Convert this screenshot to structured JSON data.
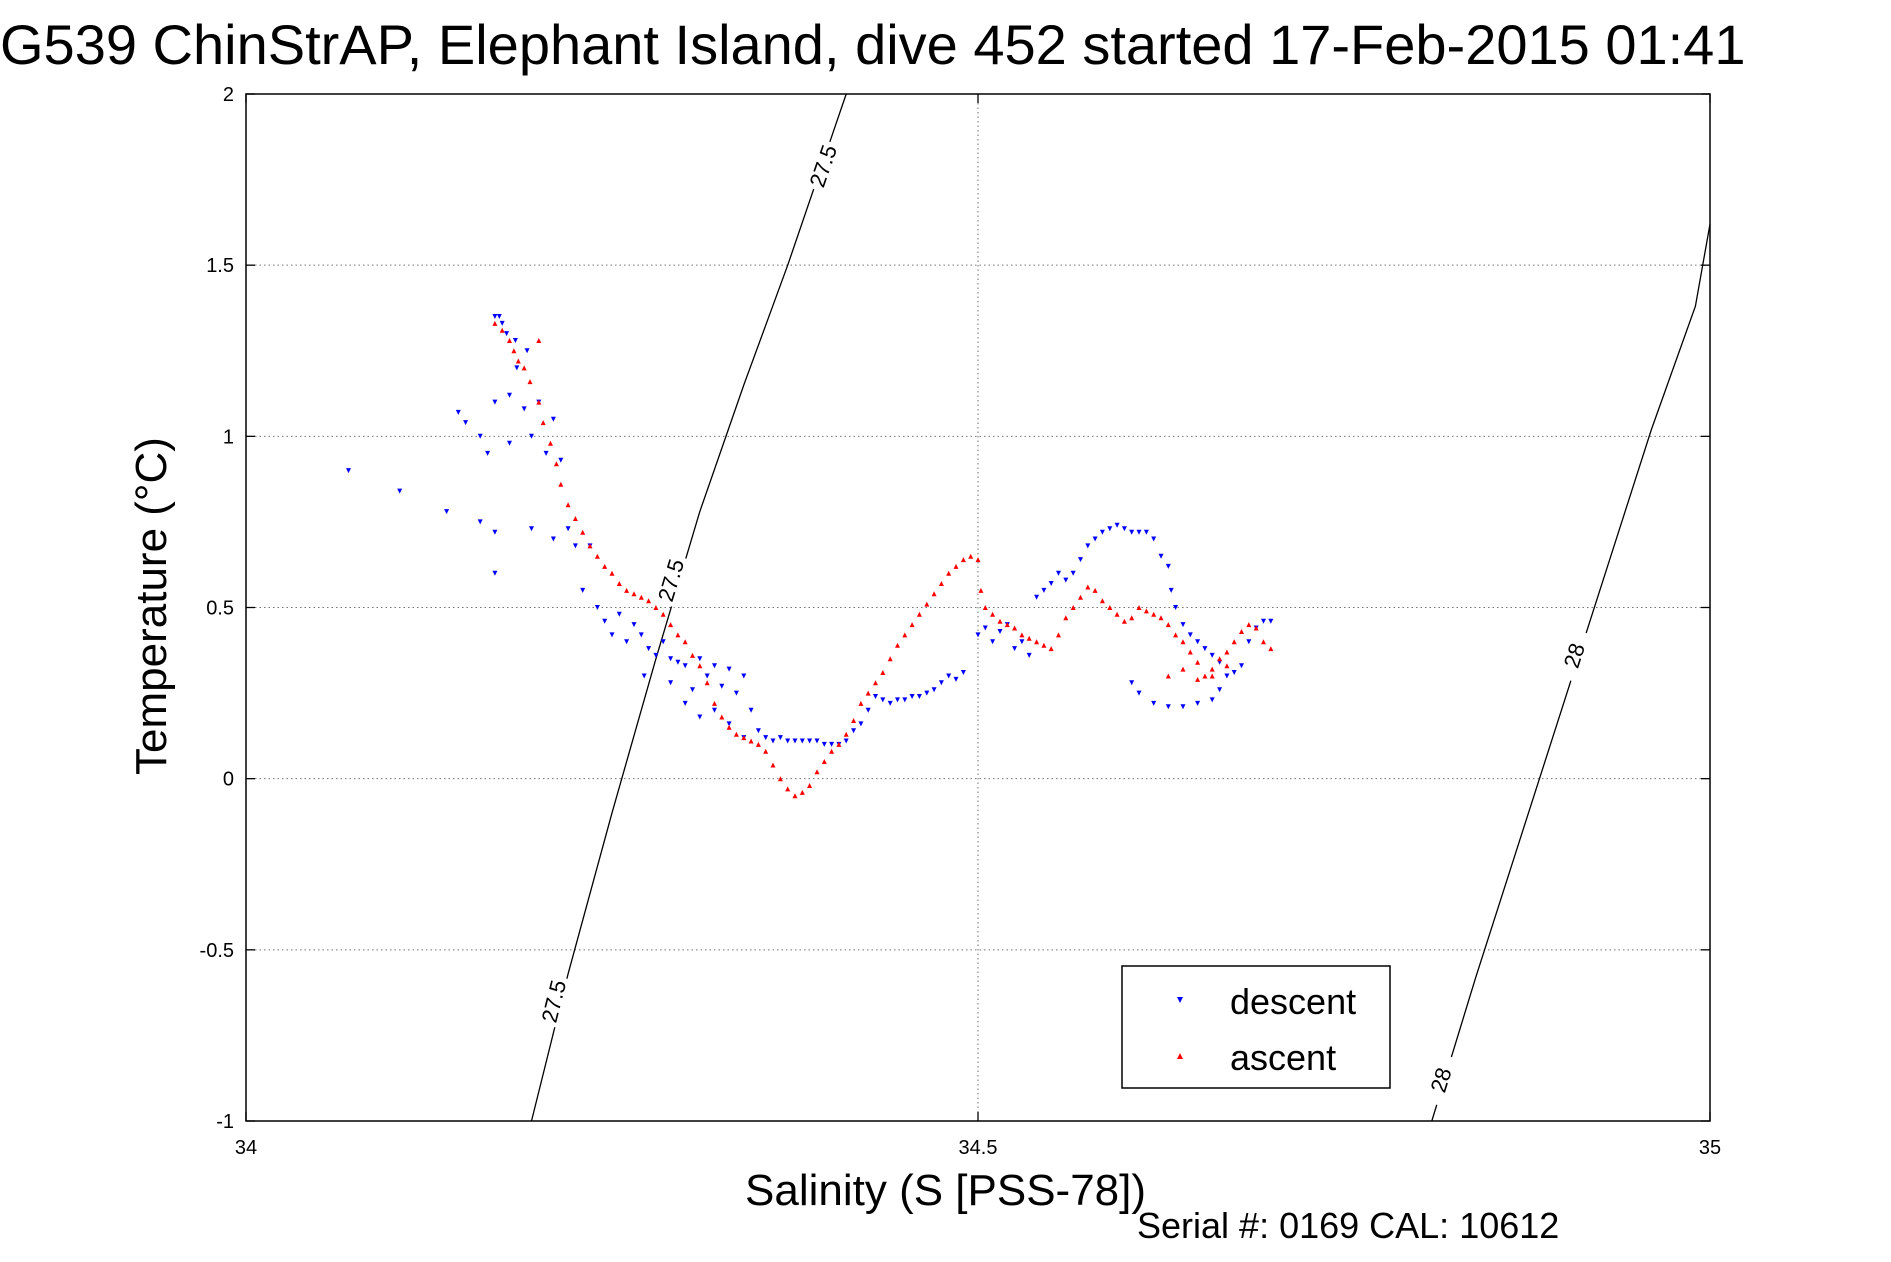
{
  "chart_data": {
    "type": "scatter",
    "title": "G539 ChinStrAP, Elephant Island, dive 452 started 17-Feb-2015 01:41",
    "xlabel": "Salinity (S [PSS-78])",
    "ylabel": "Temperature (°C)",
    "xlim": [
      34,
      35
    ],
    "ylim": [
      -1,
      2
    ],
    "xticks": [
      34,
      34.5,
      35
    ],
    "xtick_labels": [
      "34",
      "34.5",
      "35"
    ],
    "yticks": [
      -1,
      -0.5,
      0,
      0.5,
      1,
      1.5,
      2
    ],
    "ytick_labels": [
      "-1",
      "-0.5",
      "0",
      "0.5",
      "1",
      "1.5",
      "2"
    ],
    "grid": true,
    "legend_position": "bottom-right",
    "footer": "Serial #: 0169 CAL: 10612",
    "colors": {
      "descent": "#0000ff",
      "ascent": "#ff0000",
      "axes": "#000000",
      "grid": "#000000",
      "background": "#ffffff"
    },
    "series": [
      {
        "name": "descent",
        "marker": "triangle-down",
        "color": "#0000ff",
        "points": [
          [
            34.07,
            0.9
          ],
          [
            34.105,
            0.84
          ],
          [
            34.137,
            0.78
          ],
          [
            34.145,
            1.07
          ],
          [
            34.15,
            1.04
          ],
          [
            34.16,
            1.0
          ],
          [
            34.165,
            0.95
          ],
          [
            34.16,
            0.75
          ],
          [
            34.17,
            1.35
          ],
          [
            34.17,
            1.1
          ],
          [
            34.17,
            0.72
          ],
          [
            34.17,
            0.6
          ],
          [
            34.173,
            1.35
          ],
          [
            34.175,
            1.33
          ],
          [
            34.178,
            1.3
          ],
          [
            34.18,
            1.12
          ],
          [
            34.18,
            0.98
          ],
          [
            34.184,
            1.28
          ],
          [
            34.185,
            1.2
          ],
          [
            34.19,
            1.08
          ],
          [
            34.192,
            1.25
          ],
          [
            34.195,
            1.0
          ],
          [
            34.195,
            0.73
          ],
          [
            34.2,
            1.1
          ],
          [
            34.205,
            0.95
          ],
          [
            34.21,
            1.05
          ],
          [
            34.21,
            0.7
          ],
          [
            34.215,
            0.93
          ],
          [
            34.22,
            0.73
          ],
          [
            34.225,
            0.68
          ],
          [
            34.23,
            0.55
          ],
          [
            34.235,
            0.68
          ],
          [
            34.24,
            0.5
          ],
          [
            34.245,
            0.46
          ],
          [
            34.25,
            0.42
          ],
          [
            34.255,
            0.48
          ],
          [
            34.26,
            0.4
          ],
          [
            34.265,
            0.45
          ],
          [
            34.27,
            0.42
          ],
          [
            34.272,
            0.3
          ],
          [
            34.275,
            0.38
          ],
          [
            34.28,
            0.36
          ],
          [
            34.285,
            0.4
          ],
          [
            34.29,
            0.35
          ],
          [
            34.29,
            0.28
          ],
          [
            34.295,
            0.34
          ],
          [
            34.3,
            0.33
          ],
          [
            34.3,
            0.22
          ],
          [
            34.305,
            0.26
          ],
          [
            34.31,
            0.35
          ],
          [
            34.31,
            0.18
          ],
          [
            34.315,
            0.3
          ],
          [
            34.32,
            0.33
          ],
          [
            34.32,
            0.2
          ],
          [
            34.325,
            0.27
          ],
          [
            34.33,
            0.32
          ],
          [
            34.33,
            0.16
          ],
          [
            34.335,
            0.25
          ],
          [
            34.34,
            0.3
          ],
          [
            34.34,
            0.12
          ],
          [
            34.345,
            0.2
          ],
          [
            34.35,
            0.14
          ],
          [
            34.355,
            0.12
          ],
          [
            34.36,
            0.11
          ],
          [
            34.365,
            0.12
          ],
          [
            34.37,
            0.11
          ],
          [
            34.375,
            0.11
          ],
          [
            34.38,
            0.11
          ],
          [
            34.385,
            0.11
          ],
          [
            34.39,
            0.11
          ],
          [
            34.395,
            0.1
          ],
          [
            34.4,
            0.1
          ],
          [
            34.405,
            0.1
          ],
          [
            34.41,
            0.11
          ],
          [
            34.415,
            0.14
          ],
          [
            34.42,
            0.16
          ],
          [
            34.425,
            0.2
          ],
          [
            34.43,
            0.24
          ],
          [
            34.435,
            0.23
          ],
          [
            34.44,
            0.22
          ],
          [
            34.445,
            0.23
          ],
          [
            34.45,
            0.23
          ],
          [
            34.455,
            0.24
          ],
          [
            34.46,
            0.24
          ],
          [
            34.465,
            0.25
          ],
          [
            34.47,
            0.26
          ],
          [
            34.475,
            0.28
          ],
          [
            34.48,
            0.3
          ],
          [
            34.485,
            0.29
          ],
          [
            34.49,
            0.31
          ],
          [
            34.5,
            0.42
          ],
          [
            34.505,
            0.44
          ],
          [
            34.51,
            0.4
          ],
          [
            34.515,
            0.43
          ],
          [
            34.52,
            0.45
          ],
          [
            34.525,
            0.38
          ],
          [
            34.53,
            0.4
          ],
          [
            34.535,
            0.36
          ],
          [
            34.54,
            0.53
          ],
          [
            34.545,
            0.55
          ],
          [
            34.55,
            0.57
          ],
          [
            34.555,
            0.6
          ],
          [
            34.56,
            0.58
          ],
          [
            34.565,
            0.6
          ],
          [
            34.57,
            0.64
          ],
          [
            34.575,
            0.68
          ],
          [
            34.58,
            0.7
          ],
          [
            34.585,
            0.72
          ],
          [
            34.59,
            0.73
          ],
          [
            34.595,
            0.74
          ],
          [
            34.6,
            0.73
          ],
          [
            34.605,
            0.72
          ],
          [
            34.61,
            0.72
          ],
          [
            34.615,
            0.72
          ],
          [
            34.62,
            0.7
          ],
          [
            34.625,
            0.65
          ],
          [
            34.63,
            0.62
          ],
          [
            34.632,
            0.55
          ],
          [
            34.635,
            0.5
          ],
          [
            34.64,
            0.45
          ],
          [
            34.645,
            0.42
          ],
          [
            34.65,
            0.4
          ],
          [
            34.655,
            0.38
          ],
          [
            34.66,
            0.36
          ],
          [
            34.665,
            0.34
          ],
          [
            34.67,
            0.3
          ],
          [
            34.675,
            0.31
          ],
          [
            34.68,
            0.33
          ],
          [
            34.685,
            0.4
          ],
          [
            34.69,
            0.44
          ],
          [
            34.695,
            0.46
          ],
          [
            34.7,
            0.46
          ],
          [
            34.605,
            0.28
          ],
          [
            34.61,
            0.25
          ],
          [
            34.62,
            0.22
          ],
          [
            34.63,
            0.21
          ],
          [
            34.64,
            0.21
          ],
          [
            34.65,
            0.22
          ],
          [
            34.66,
            0.23
          ],
          [
            34.665,
            0.26
          ]
        ]
      },
      {
        "name": "ascent",
        "marker": "triangle-up",
        "color": "#ff0000",
        "points": [
          [
            34.17,
            1.33
          ],
          [
            34.175,
            1.31
          ],
          [
            34.18,
            1.28
          ],
          [
            34.183,
            1.25
          ],
          [
            34.186,
            1.22
          ],
          [
            34.19,
            1.2
          ],
          [
            34.194,
            1.16
          ],
          [
            34.2,
            1.1
          ],
          [
            34.203,
            1.04
          ],
          [
            34.208,
            0.98
          ],
          [
            34.212,
            0.92
          ],
          [
            34.215,
            0.86
          ],
          [
            34.22,
            0.8
          ],
          [
            34.225,
            0.76
          ],
          [
            34.23,
            0.72
          ],
          [
            34.235,
            0.68
          ],
          [
            34.24,
            0.65
          ],
          [
            34.245,
            0.62
          ],
          [
            34.25,
            0.6
          ],
          [
            34.255,
            0.57
          ],
          [
            34.26,
            0.55
          ],
          [
            34.265,
            0.54
          ],
          [
            34.27,
            0.53
          ],
          [
            34.275,
            0.52
          ],
          [
            34.28,
            0.5
          ],
          [
            34.285,
            0.48
          ],
          [
            34.29,
            0.45
          ],
          [
            34.295,
            0.42
          ],
          [
            34.3,
            0.4
          ],
          [
            34.305,
            0.36
          ],
          [
            34.31,
            0.33
          ],
          [
            34.315,
            0.28
          ],
          [
            34.32,
            0.22
          ],
          [
            34.325,
            0.18
          ],
          [
            34.33,
            0.15
          ],
          [
            34.335,
            0.13
          ],
          [
            34.34,
            0.12
          ],
          [
            34.345,
            0.11
          ],
          [
            34.35,
            0.1
          ],
          [
            34.355,
            0.08
          ],
          [
            34.36,
            0.04
          ],
          [
            34.365,
            0.0
          ],
          [
            34.37,
            -0.03
          ],
          [
            34.375,
            -0.05
          ],
          [
            34.38,
            -0.04
          ],
          [
            34.385,
            -0.02
          ],
          [
            34.39,
            0.02
          ],
          [
            34.395,
            0.05
          ],
          [
            34.4,
            0.08
          ],
          [
            34.405,
            0.1
          ],
          [
            34.41,
            0.13
          ],
          [
            34.415,
            0.17
          ],
          [
            34.42,
            0.22
          ],
          [
            34.425,
            0.25
          ],
          [
            34.43,
            0.28
          ],
          [
            34.435,
            0.31
          ],
          [
            34.44,
            0.35
          ],
          [
            34.445,
            0.39
          ],
          [
            34.45,
            0.42
          ],
          [
            34.455,
            0.45
          ],
          [
            34.46,
            0.48
          ],
          [
            34.465,
            0.51
          ],
          [
            34.47,
            0.54
          ],
          [
            34.475,
            0.57
          ],
          [
            34.48,
            0.6
          ],
          [
            34.485,
            0.62
          ],
          [
            34.49,
            0.64
          ],
          [
            34.495,
            0.65
          ],
          [
            34.5,
            0.64
          ],
          [
            34.502,
            0.55
          ],
          [
            34.505,
            0.5
          ],
          [
            34.51,
            0.48
          ],
          [
            34.515,
            0.46
          ],
          [
            34.52,
            0.45
          ],
          [
            34.525,
            0.44
          ],
          [
            34.53,
            0.42
          ],
          [
            34.535,
            0.41
          ],
          [
            34.54,
            0.4
          ],
          [
            34.545,
            0.39
          ],
          [
            34.55,
            0.38
          ],
          [
            34.555,
            0.42
          ],
          [
            34.56,
            0.47
          ],
          [
            34.565,
            0.5
          ],
          [
            34.57,
            0.53
          ],
          [
            34.575,
            0.56
          ],
          [
            34.58,
            0.55
          ],
          [
            34.585,
            0.52
          ],
          [
            34.59,
            0.5
          ],
          [
            34.595,
            0.48
          ],
          [
            34.6,
            0.46
          ],
          [
            34.605,
            0.47
          ],
          [
            34.61,
            0.5
          ],
          [
            34.615,
            0.49
          ],
          [
            34.62,
            0.48
          ],
          [
            34.625,
            0.47
          ],
          [
            34.63,
            0.45
          ],
          [
            34.635,
            0.42
          ],
          [
            34.64,
            0.4
          ],
          [
            34.645,
            0.37
          ],
          [
            34.65,
            0.34
          ],
          [
            34.655,
            0.3
          ],
          [
            34.66,
            0.32
          ],
          [
            34.665,
            0.35
          ],
          [
            34.67,
            0.37
          ],
          [
            34.675,
            0.4
          ],
          [
            34.68,
            0.43
          ],
          [
            34.685,
            0.45
          ],
          [
            34.69,
            0.44
          ],
          [
            34.695,
            0.4
          ],
          [
            34.7,
            0.38
          ],
          [
            34.2,
            1.28
          ],
          [
            34.63,
            0.3
          ],
          [
            34.64,
            0.32
          ],
          [
            34.65,
            0.29
          ],
          [
            34.66,
            0.3
          ],
          [
            34.67,
            0.33
          ]
        ]
      }
    ],
    "contours": [
      {
        "label": "27.5",
        "path": [
          [
            34.195,
            -1.0
          ],
          [
            34.22,
            -0.57
          ],
          [
            34.25,
            -0.1
          ],
          [
            34.28,
            0.35
          ],
          [
            34.31,
            0.78
          ],
          [
            34.34,
            1.15
          ],
          [
            34.37,
            1.5
          ],
          [
            34.41,
            2.0
          ]
        ],
        "labels_at": [
          [
            34.21,
            -0.65
          ],
          [
            34.29,
            0.58
          ],
          [
            34.394,
            1.79
          ]
        ]
      },
      {
        "label": "28",
        "path": [
          [
            34.81,
            -1.0
          ],
          [
            34.84,
            -0.58
          ],
          [
            34.87,
            -0.18
          ],
          [
            34.9,
            0.22
          ],
          [
            34.93,
            0.62
          ],
          [
            34.96,
            1.02
          ],
          [
            34.99,
            1.38
          ],
          [
            35.0,
            1.62
          ]
        ],
        "labels_at": [
          [
            34.816,
            -0.88
          ],
          [
            34.907,
            0.36
          ]
        ]
      }
    ]
  }
}
